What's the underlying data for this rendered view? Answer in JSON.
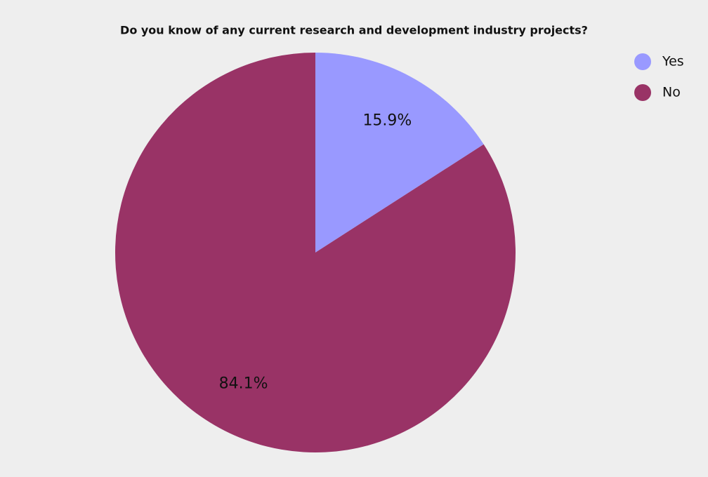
{
  "chart_data": {
    "type": "pie",
    "title": "Do you know of any current research and development industry projects?",
    "categories": [
      "Yes",
      "No"
    ],
    "values": [
      15.9,
      84.1
    ],
    "value_labels": [
      "15.9%",
      "84.1%"
    ],
    "colors": [
      "#9999ff",
      "#993366"
    ],
    "legend": "top-right"
  }
}
